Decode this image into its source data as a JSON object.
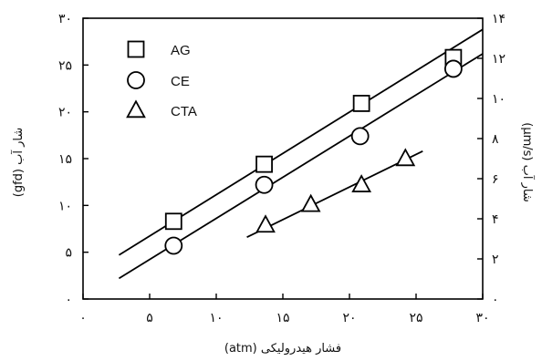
{
  "chart_data": {
    "type": "scatter",
    "xlabel": "فشار هیدرولیکی (atm)",
    "ylabel_left": "شار آب (gfd)",
    "ylabel_right": "شار آب (µm/s)",
    "xlim": [
      0,
      30
    ],
    "ylim_left": [
      0,
      30
    ],
    "ylim_right": [
      0,
      14
    ],
    "x_ticks": [
      0,
      5,
      10,
      15,
      20,
      25,
      30
    ],
    "x_tick_labels": [
      "۰",
      "۵",
      "۱۰",
      "۱۵",
      "۲۰",
      "۲۵",
      "۳۰"
    ],
    "y_left_ticks": [
      0,
      5,
      10,
      15,
      20,
      25,
      30
    ],
    "y_left_tick_labels": [
      "۰",
      "۵",
      "۱۰",
      "۱۵",
      "۲۰",
      "۲۵",
      "۳۰"
    ],
    "y_right_ticks": [
      0,
      2,
      4,
      6,
      8,
      10,
      12,
      14
    ],
    "y_right_tick_labels": [
      "۰",
      "۲",
      "۴",
      "۶",
      "۸",
      "۱۰",
      "۱۲",
      "۱۴"
    ],
    "grid": false,
    "legend_position": "top-left",
    "series": [
      {
        "name": "AG",
        "marker": "square",
        "points": [
          [
            6.8,
            8.3
          ],
          [
            13.6,
            14.4
          ],
          [
            20.9,
            20.9
          ],
          [
            27.8,
            25.8
          ]
        ],
        "fit": [
          [
            2.7,
            4.7
          ],
          [
            30,
            28.8
          ]
        ]
      },
      {
        "name": "CE",
        "marker": "circle",
        "points": [
          [
            6.8,
            5.7
          ],
          [
            13.6,
            12.2
          ],
          [
            20.8,
            17.4
          ],
          [
            27.8,
            24.6
          ]
        ],
        "fit": [
          [
            2.7,
            2.2
          ],
          [
            30,
            26.2
          ]
        ]
      },
      {
        "name": "CTA",
        "marker": "triangle",
        "points": [
          [
            13.7,
            7.9
          ],
          [
            17.1,
            10.1
          ],
          [
            20.9,
            12.2
          ],
          [
            24.2,
            15.0
          ]
        ],
        "fit": [
          [
            12.3,
            6.6
          ],
          [
            25.5,
            15.8
          ]
        ]
      }
    ]
  }
}
